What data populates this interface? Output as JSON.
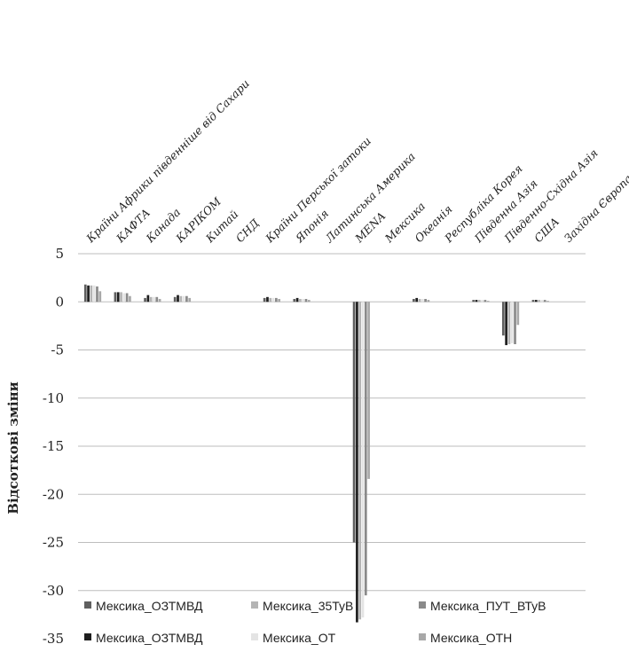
{
  "chart_data": {
    "type": "bar",
    "ylabel": "Відсоткові  зміни",
    "ylim": [
      -35,
      5
    ],
    "yticks": [
      5,
      0,
      -5,
      -10,
      -15,
      -20,
      -25,
      -30,
      -35
    ],
    "grid": true,
    "legend_position": "bottom",
    "categories": [
      "Країни Африки південніше від Сахари",
      "КАФТА",
      "Канада",
      "КАРІКОМ",
      "Китай",
      "СНД",
      "Країни Перської затоки",
      "Японія",
      "Латинська Америка",
      "MENA",
      "Мексика",
      "Океанія",
      "Республіка Корея",
      "Південна Азія",
      "Південно-Східна Азія",
      "США",
      "Західна Європа"
    ],
    "series": [
      {
        "name": "Мексика_ОЗТМВД",
        "color": "#5f5f5f",
        "values": [
          1.8,
          1.0,
          0.4,
          0.5,
          0.0,
          0.0,
          0.4,
          0.3,
          0.0,
          -25.0,
          0.0,
          0.3,
          0.0,
          0.2,
          -3.5,
          0.2,
          0.0
        ]
      },
      {
        "name": "Мексика_ОЗТМВД",
        "color": "#1e1e1e",
        "values": [
          1.7,
          1.0,
          0.7,
          0.7,
          0.0,
          0.0,
          0.5,
          0.4,
          0.0,
          -33.3,
          0.0,
          0.4,
          0.0,
          0.2,
          -4.5,
          0.2,
          0.0
        ]
      },
      {
        "name": "Мексика_35ТуВ",
        "color": "#b4b4b4",
        "values": [
          1.7,
          1.0,
          0.5,
          0.6,
          0.0,
          0.0,
          0.4,
          0.3,
          0.0,
          -33.0,
          0.0,
          0.3,
          0.0,
          0.2,
          -4.4,
          0.2,
          0.0
        ]
      },
      {
        "name": "Мексика_ОТ",
        "color": "#e4e4e4",
        "values": [
          1.7,
          0.9,
          0.5,
          0.6,
          0.0,
          0.0,
          0.4,
          0.3,
          0.0,
          -32.8,
          0.0,
          0.3,
          0.0,
          0.2,
          -4.3,
          0.2,
          0.0
        ]
      },
      {
        "name": "Мексика_ПУТ_ВТуВ",
        "color": "#8a8a8a",
        "values": [
          1.6,
          0.9,
          0.5,
          0.6,
          0.0,
          0.0,
          0.4,
          0.3,
          0.0,
          -30.5,
          0.0,
          0.3,
          0.0,
          0.2,
          -4.4,
          0.2,
          0.0
        ]
      },
      {
        "name": "Мексика_ОТН",
        "color": "#a8a8a8",
        "values": [
          1.1,
          0.6,
          0.3,
          0.4,
          0.0,
          0.0,
          0.3,
          0.2,
          0.0,
          -18.4,
          0.0,
          0.2,
          0.0,
          0.1,
          -2.4,
          0.1,
          0.0
        ]
      }
    ],
    "legend_order": [
      0,
      2,
      4,
      1,
      3,
      5
    ]
  }
}
